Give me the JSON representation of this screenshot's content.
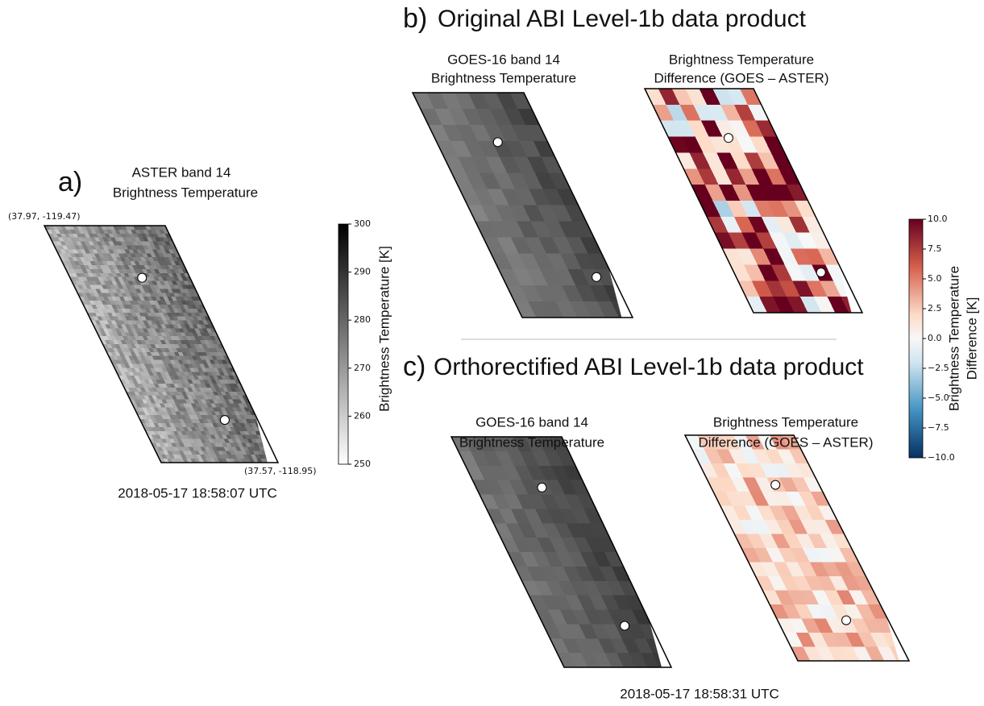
{
  "panel_a": {
    "label": "a)",
    "title": [
      "ASTER band 14",
      "Brightness Temperature"
    ],
    "corner_nw": "(37.97, -119.47)",
    "corner_se": "(37.57, -118.95)",
    "timestamp": "2018-05-17 18:58:07 UTC",
    "colorbar": {
      "label": "Brightness Temperature [K]",
      "ticks": [
        300,
        290,
        280,
        270,
        260,
        250
      ]
    }
  },
  "panel_b": {
    "label": "b)",
    "title": "Original ABI Level-1b data product",
    "left_map_title": [
      "GOES-16 band 14",
      "Brightness Temperature"
    ],
    "right_map_title": [
      "Brightness Temperature",
      "Difference (GOES – ASTER)"
    ]
  },
  "panel_c": {
    "label": "c)",
    "title": "Orthorectified ABI Level-1b data product",
    "left_map_title": [
      "GOES-16 band 14",
      "Brightness Temperature"
    ],
    "right_map_title": [
      "Brightness Temperature",
      "Difference (GOES – ASTER)"
    ],
    "timestamp": "2018-05-17 18:58:31 UTC"
  },
  "difference_colorbar": {
    "label": [
      "Brightness Temperature",
      "Difference [K]"
    ],
    "ticks": [
      "10.0",
      "7.5",
      "5.0",
      "2.5",
      "0.0",
      "−2.5",
      "−5.0",
      "−7.5",
      "−10.0"
    ]
  }
}
